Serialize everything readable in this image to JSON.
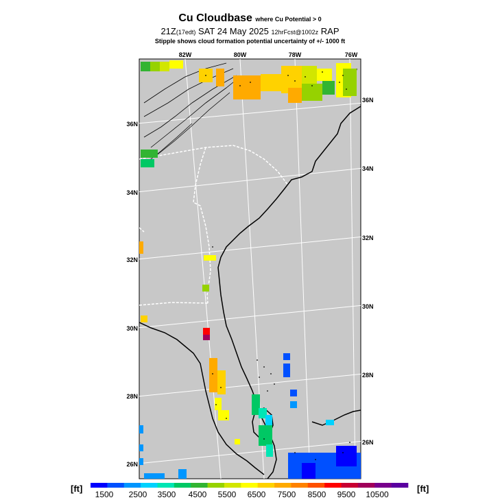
{
  "title": {
    "main": "Cu Cloudbase",
    "sub": "where Cu Potential > 0"
  },
  "header": {
    "valid_time": "21Z",
    "local_time": "(17edt)",
    "date": "SAT 24 May 2025",
    "forecast": "12hrFcst@1002z",
    "model": "RAP",
    "note": "Stipple shows cloud formation potential uncertainty of +/- 1000 ft"
  },
  "map": {
    "lon_labels": [
      "82W",
      "80W",
      "78W",
      "76W"
    ],
    "lat_labels_left": [
      "36N",
      "34N",
      "32N",
      "30N",
      "28N",
      "26N"
    ],
    "lat_labels_right": [
      "36N",
      "34N",
      "32N",
      "30N",
      "28N",
      "26N"
    ],
    "land_color": "#c8c8c8",
    "coast_color": "#000000",
    "border_color": "#ffffff"
  },
  "legend": {
    "unit_left": "[ft]",
    "unit_right": "[ft]",
    "labels": [
      "1500",
      "2500",
      "3500",
      "4500",
      "5500",
      "6500",
      "7500",
      "8500",
      "9500",
      "10500"
    ],
    "colors": [
      "#0000ff",
      "#0050ff",
      "#0096ff",
      "#00d2ff",
      "#00e6b4",
      "#00c864",
      "#32b432",
      "#96d200",
      "#d2e600",
      "#ffff00",
      "#ffd200",
      "#ffaa00",
      "#ff8200",
      "#ff5000",
      "#ff0000",
      "#c80032",
      "#a0005a",
      "#78008c",
      "#5a00a0"
    ]
  }
}
